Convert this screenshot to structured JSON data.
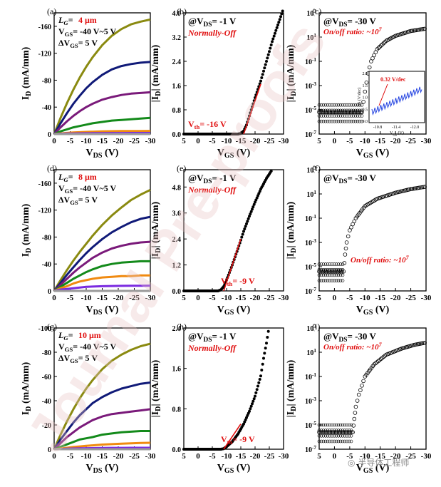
{
  "watermark": {
    "text": "Journal Pre-proofs",
    "color": "#e8c4c4"
  },
  "footer_badge": {
    "icon": "wechat-icon",
    "text": "半导体工程师"
  },
  "colors": {
    "olive": "#8a8a10",
    "navy": "#101a78",
    "purple": "#7a1a7a",
    "green": "#138a1a",
    "orange": "#f08a10",
    "violet": "#7a2ae0",
    "grey": "#9a9a9a",
    "red": "#e01010",
    "blue": "#2040e0"
  },
  "panels": [
    {
      "id": "a",
      "label": "(a)",
      "ann": {
        "lg": "4 μm",
        "vgs": "= -40 V~5 V",
        "dvgs": "= 5 V"
      },
      "chart_data": {
        "type": "line",
        "xlabel": "V_DS (V)",
        "ylabel": "I_D (mA/mm)",
        "xlim": [
          0,
          -30
        ],
        "ylim": [
          0,
          -180
        ],
        "xticks": [
          "0",
          "-5",
          "-10",
          "-15",
          "-20",
          "-25",
          "-30"
        ],
        "yticks": [
          "0",
          "-40",
          "-80",
          "-120",
          "-160"
        ],
        "x": [
          0,
          -1,
          -2,
          -4,
          -6,
          -8,
          -10,
          -12,
          -15,
          -18,
          -21,
          -24,
          -27,
          -30
        ],
        "series": [
          {
            "color": "olive",
            "values": [
              0,
              -12,
              -24,
              -46,
              -66,
              -84,
              -100,
              -114,
              -132,
              -146,
              -156,
              -163,
              -167,
              -170
            ]
          },
          {
            "color": "navy",
            "values": [
              0,
              -8,
              -16,
              -31,
              -45,
              -57,
              -68,
              -77,
              -88,
              -96,
              -101,
              -104,
              -106,
              -107
            ]
          },
          {
            "color": "purple",
            "values": [
              0,
              -5,
              -10,
              -19,
              -27,
              -34,
              -40,
              -45,
              -51,
              -55,
              -58,
              -60,
              -61,
              -62
            ]
          },
          {
            "color": "green",
            "values": [
              0,
              -2,
              -4,
              -7,
              -10,
              -12,
              -14,
              -16,
              -18,
              -20,
              -21,
              -22,
              -23,
              -24
            ]
          },
          {
            "color": "orange",
            "values": [
              0,
              -0.5,
              -1,
              -1.7,
              -2.3,
              -2.8,
              -3.2,
              -3.5,
              -3.9,
              -4.2,
              -4.4,
              -4.5,
              -4.6,
              -4.7
            ]
          },
          {
            "color": "violet",
            "values": [
              0,
              -0.2,
              -0.4,
              -0.7,
              -0.9,
              -1.1,
              -1.2,
              -1.3,
              -1.4,
              -1.5,
              -1.5,
              -1.6,
              -1.6,
              -1.6
            ]
          },
          {
            "color": "grey",
            "values": [
              0,
              0,
              0,
              0,
              0,
              0,
              0,
              0,
              0,
              0,
              0,
              0,
              0,
              0
            ]
          }
        ]
      }
    },
    {
      "id": "b",
      "label": "(b)",
      "ann": {
        "bias": "@V_DS= -1 V",
        "mode": "Normally-Off",
        "vth": "V_th= -16 V"
      },
      "chart_data": {
        "type": "scatter",
        "xlabel": "V_GS (V)",
        "ylabel": "|I_D| (mA/mm)",
        "xlim": [
          5,
          -30
        ],
        "ylim": [
          0,
          4.0
        ],
        "xticks": [
          "5",
          "0",
          "-5",
          "-10",
          "-15",
          "-20",
          "-25",
          "-30"
        ],
        "yticks": [
          "0.0",
          "0.8",
          "1.6",
          "2.4",
          "3.2",
          "4.0"
        ],
        "vth": -16,
        "fit_line": [
          [
            -16,
            0
          ],
          [
            -22,
            1.65
          ]
        ],
        "curve": [
          [
            5,
            0
          ],
          [
            -14,
            0
          ],
          [
            -15,
            0.02
          ],
          [
            -16,
            0.1
          ],
          [
            -17,
            0.3
          ],
          [
            -18,
            0.6
          ],
          [
            -20,
            1.2
          ],
          [
            -22,
            1.75
          ],
          [
            -24,
            2.4
          ],
          [
            -26,
            3.05
          ],
          [
            -28,
            3.6
          ],
          [
            -30,
            4.15
          ]
        ]
      }
    },
    {
      "id": "c",
      "label": "(c)",
      "ann": {
        "bias": "@V_DS= -30 V",
        "ratio": "On/off ratio: ~10^7"
      },
      "chart_data": {
        "type": "scatter",
        "xlabel": "V_GS (V)",
        "ylabel": "|I_D| (mA/mm)",
        "xlim": [
          5,
          -30
        ],
        "ylim": [
          -7,
          3
        ],
        "yscale": "log",
        "xticks": [
          "5",
          "0",
          "-5",
          "-10",
          "-15",
          "-20",
          "-25",
          "-30"
        ],
        "yticks": [
          "10^-7",
          "10^-5",
          "10^-3",
          "10^-1",
          "10^1",
          "10^3"
        ],
        "curve": [
          [
            5,
            -5.2
          ],
          [
            -9,
            -5.2
          ],
          [
            -10,
            -3.5
          ],
          [
            -11,
            -2
          ],
          [
            -12,
            -1
          ],
          [
            -14,
            0
          ],
          [
            -17,
            0.7
          ],
          [
            -20,
            1.1
          ],
          [
            -25,
            1.5
          ],
          [
            -30,
            1.7
          ]
        ],
        "inset": {
          "xlabel": "V_GS (V)",
          "ylabel": "SS (V/dec)",
          "xticks": [
            "-10.8",
            "-11.4",
            "-12.0"
          ],
          "yticks": [
            "0.0",
            "0.5",
            "1.0",
            "1.5",
            "2.0"
          ],
          "label": "0.32 V/dec"
        }
      }
    },
    {
      "id": "d",
      "label": "(d)",
      "ann": {
        "lg": "8 μm",
        "vgs": "= -40 V~5 V",
        "dvgs": "= 5 V"
      },
      "chart_data": {
        "type": "line",
        "xlabel": "V_DS (V)",
        "ylabel": "I_D (mA/mm)",
        "xlim": [
          0,
          -30
        ],
        "ylim": [
          0,
          -180
        ],
        "xticks": [
          "0",
          "-5",
          "-10",
          "-15",
          "-20",
          "-25",
          "-30"
        ],
        "yticks": [
          "0",
          "-40",
          "-80",
          "-120",
          "-160"
        ],
        "x": [
          0,
          -1,
          -2,
          -4,
          -6,
          -8,
          -10,
          -12,
          -15,
          -18,
          -21,
          -24,
          -27,
          -30
        ],
        "series": [
          {
            "color": "olive",
            "values": [
              0,
              -8,
              -16,
              -31,
              -45,
              -58,
              -70,
              -82,
              -98,
              -112,
              -124,
              -135,
              -143,
              -150
            ]
          },
          {
            "color": "navy",
            "values": [
              0,
              -6,
              -12,
              -24,
              -35,
              -46,
              -56,
              -65,
              -77,
              -87,
              -95,
              -102,
              -107,
              -110
            ]
          },
          {
            "color": "purple",
            "values": [
              0,
              -4,
              -9,
              -18,
              -27,
              -35,
              -42,
              -49,
              -57,
              -63,
              -67,
              -70,
              -72,
              -73
            ]
          },
          {
            "color": "green",
            "values": [
              0,
              -3,
              -6,
              -12,
              -18,
              -23,
              -28,
              -32,
              -37,
              -40,
              -42,
              -43,
              -44,
              -44
            ]
          },
          {
            "color": "orange",
            "values": [
              0,
              -2,
              -4,
              -7,
              -11,
              -14,
              -16,
              -18,
              -20,
              -21,
              -22,
              -22,
              -23,
              -23
            ]
          },
          {
            "color": "violet",
            "values": [
              0,
              -1,
              -2,
              -3,
              -4,
              -5,
              -6,
              -6.5,
              -7,
              -7.3,
              -7.5,
              -7.6,
              -7.7,
              -7.8
            ]
          },
          {
            "color": "grey",
            "values": [
              0,
              0,
              0,
              0,
              0,
              0,
              0,
              0,
              0,
              0,
              0,
              0,
              0,
              0
            ]
          }
        ]
      }
    },
    {
      "id": "e",
      "label": "(e)",
      "ann": {
        "bias": "@V_DS= -1 V",
        "mode": "Normally-Off",
        "vth": "V_th= -9 V"
      },
      "chart_data": {
        "type": "scatter",
        "xlabel": "V_GS (V)",
        "ylabel": "|I_D| (mA/mm)",
        "xlim": [
          5,
          -30
        ],
        "ylim": [
          0,
          5.6
        ],
        "xticks": [
          "5",
          "0",
          "-5",
          "-10",
          "-15",
          "-20",
          "-25",
          "-30"
        ],
        "yticks": [
          "0.0",
          "1.2",
          "2.4",
          "3.6",
          "4.8"
        ],
        "vth": -9,
        "fit_line": [
          [
            -9,
            0
          ],
          [
            -15,
            2.4
          ]
        ],
        "curve": [
          [
            5,
            0
          ],
          [
            -7,
            0
          ],
          [
            -8,
            0.05
          ],
          [
            -9,
            0.2
          ],
          [
            -10,
            0.5
          ],
          [
            -12,
            1.2
          ],
          [
            -14,
            1.95
          ],
          [
            -16,
            2.75
          ],
          [
            -18,
            3.45
          ],
          [
            -20,
            4.1
          ],
          [
            -22,
            4.7
          ],
          [
            -24,
            5.2
          ],
          [
            -26,
            5.6
          ]
        ]
      }
    },
    {
      "id": "f",
      "label": "(f)",
      "ann": {
        "bias": "@V_DS= -30 V",
        "ratio": "On/off ratio: ~10^7"
      },
      "chart_data": {
        "type": "scatter",
        "xlabel": "V_GS (V)",
        "ylabel": "|I_D| (mA/mm)",
        "xlim": [
          5,
          -30
        ],
        "ylim": [
          -7,
          3
        ],
        "yscale": "log",
        "xticks": [
          "5",
          "0",
          "-5",
          "-10",
          "-15",
          "-20",
          "-25",
          "-30"
        ],
        "yticks": [
          "10^-7",
          "10^-5",
          "10^-3",
          "10^-1",
          "10^1",
          "10^3"
        ],
        "curve": [
          [
            5,
            -5.4
          ],
          [
            -3,
            -5.4
          ],
          [
            -3.5,
            -4
          ],
          [
            -4,
            -3
          ],
          [
            -5,
            -2
          ],
          [
            -7,
            -1
          ],
          [
            -10,
            0
          ],
          [
            -14,
            0.6
          ],
          [
            -20,
            1.1
          ],
          [
            -25,
            1.4
          ],
          [
            -30,
            1.6
          ]
        ]
      }
    },
    {
      "id": "g",
      "label": "(g)",
      "ann": {
        "lg": "10 μm",
        "vgs": "= -40 V~5 V",
        "dvgs": "= 5 V"
      },
      "chart_data": {
        "type": "line",
        "xlabel": "V_DS (V)",
        "ylabel": "I_D (mA/mm)",
        "xlim": [
          0,
          -30
        ],
        "ylim": [
          0,
          -100
        ],
        "xticks": [
          "0",
          "-5",
          "-10",
          "-15",
          "-20",
          "-25",
          "-30"
        ],
        "yticks": [
          "0",
          "-20",
          "-40",
          "-60",
          "-80",
          "-100"
        ],
        "x": [
          0,
          -1,
          -2,
          -4,
          -6,
          -8,
          -10,
          -12,
          -15,
          -18,
          -21,
          -24,
          -27,
          -30
        ],
        "series": [
          {
            "color": "olive",
            "values": [
              0,
              -6,
              -12,
              -23,
              -33,
              -42,
              -50,
              -57,
              -66,
              -73,
              -78,
              -82,
              -85,
              -87
            ]
          },
          {
            "color": "navy",
            "values": [
              0,
              -4,
              -8,
              -15,
              -22,
              -28,
              -33,
              -38,
              -43,
              -47,
              -50,
              -52,
              -54,
              -55
            ]
          },
          {
            "color": "purple",
            "values": [
              0,
              -2.5,
              -5,
              -10,
              -14,
              -18,
              -21,
              -24,
              -27,
              -29,
              -30,
              -31,
              -32,
              -33
            ]
          },
          {
            "color": "green",
            "values": [
              0,
              -1,
              -2,
              -4,
              -6,
              -8,
              -9,
              -10,
              -12,
              -13,
              -14,
              -14.5,
              -15,
              -15
            ]
          },
          {
            "color": "orange",
            "values": [
              0,
              -0.3,
              -0.6,
              -1.2,
              -1.8,
              -2.3,
              -2.8,
              -3.2,
              -3.8,
              -4.2,
              -4.6,
              -4.9,
              -5.1,
              -5.3
            ]
          },
          {
            "color": "violet",
            "values": [
              0,
              -0.1,
              -0.2,
              -0.4,
              -0.6,
              -0.7,
              -0.8,
              -0.9,
              -1,
              -1.1,
              -1.1,
              -1.2,
              -1.2,
              -1.2
            ]
          },
          {
            "color": "grey",
            "values": [
              0,
              0,
              0,
              0,
              0,
              0,
              0,
              0,
              0,
              0,
              0,
              0,
              0,
              0
            ]
          }
        ]
      }
    },
    {
      "id": "h",
      "label": "(h)",
      "ann": {
        "bias": "@V_DS= -1 V",
        "mode": "Normally-Off",
        "vth": "V_th= -9 V"
      },
      "chart_data": {
        "type": "scatter",
        "xlabel": "V_GS (V)",
        "ylabel": "|I_D| (mA/mm)",
        "xlim": [
          5,
          -30
        ],
        "ylim": [
          0,
          2.4
        ],
        "xticks": [
          "5",
          "0",
          "-5",
          "-10",
          "-15",
          "-20",
          "-25",
          "-30"
        ],
        "yticks": [
          "0.0",
          "0.8",
          "1.6",
          "2.4"
        ],
        "vth": -9,
        "fit_line": [
          [
            -9,
            0
          ],
          [
            -15,
            0.5
          ]
        ],
        "curve": [
          [
            5,
            0
          ],
          [
            -8,
            0
          ],
          [
            -9,
            0.01
          ],
          [
            -10,
            0.05
          ],
          [
            -12,
            0.15
          ],
          [
            -14,
            0.3
          ],
          [
            -16,
            0.5
          ],
          [
            -18,
            0.75
          ],
          [
            -20,
            1.05
          ],
          [
            -22,
            1.45
          ],
          [
            -23,
            1.8
          ],
          [
            -24,
            2.1
          ],
          [
            -25,
            2.45
          ]
        ]
      }
    },
    {
      "id": "i",
      "label": "(i)",
      "ann": {
        "bias": "@V_DS= -30 V",
        "ratio": "On/off ratio: ~10^7"
      },
      "chart_data": {
        "type": "scatter",
        "xlabel": "V_GS (V)",
        "ylabel": "|I_D| (mA/mm)",
        "xlim": [
          5,
          -30
        ],
        "ylim": [
          -7,
          3
        ],
        "yscale": "log",
        "xticks": [
          "5",
          "0",
          "-5",
          "-10",
          "-15",
          "-20",
          "-25",
          "-30"
        ],
        "yticks": [
          "10^-7",
          "10^-5",
          "10^-3",
          "10^-1",
          "10^1",
          "10^3"
        ],
        "curve": [
          [
            5,
            -5.6
          ],
          [
            -6,
            -5.6
          ],
          [
            -6.5,
            -4.5
          ],
          [
            -7,
            -3.5
          ],
          [
            -8,
            -2.5
          ],
          [
            -10,
            -1
          ],
          [
            -13,
            0
          ],
          [
            -17,
            0.8
          ],
          [
            -22,
            1.3
          ],
          [
            -26,
            1.6
          ],
          [
            -30,
            1.8
          ]
        ]
      }
    }
  ]
}
